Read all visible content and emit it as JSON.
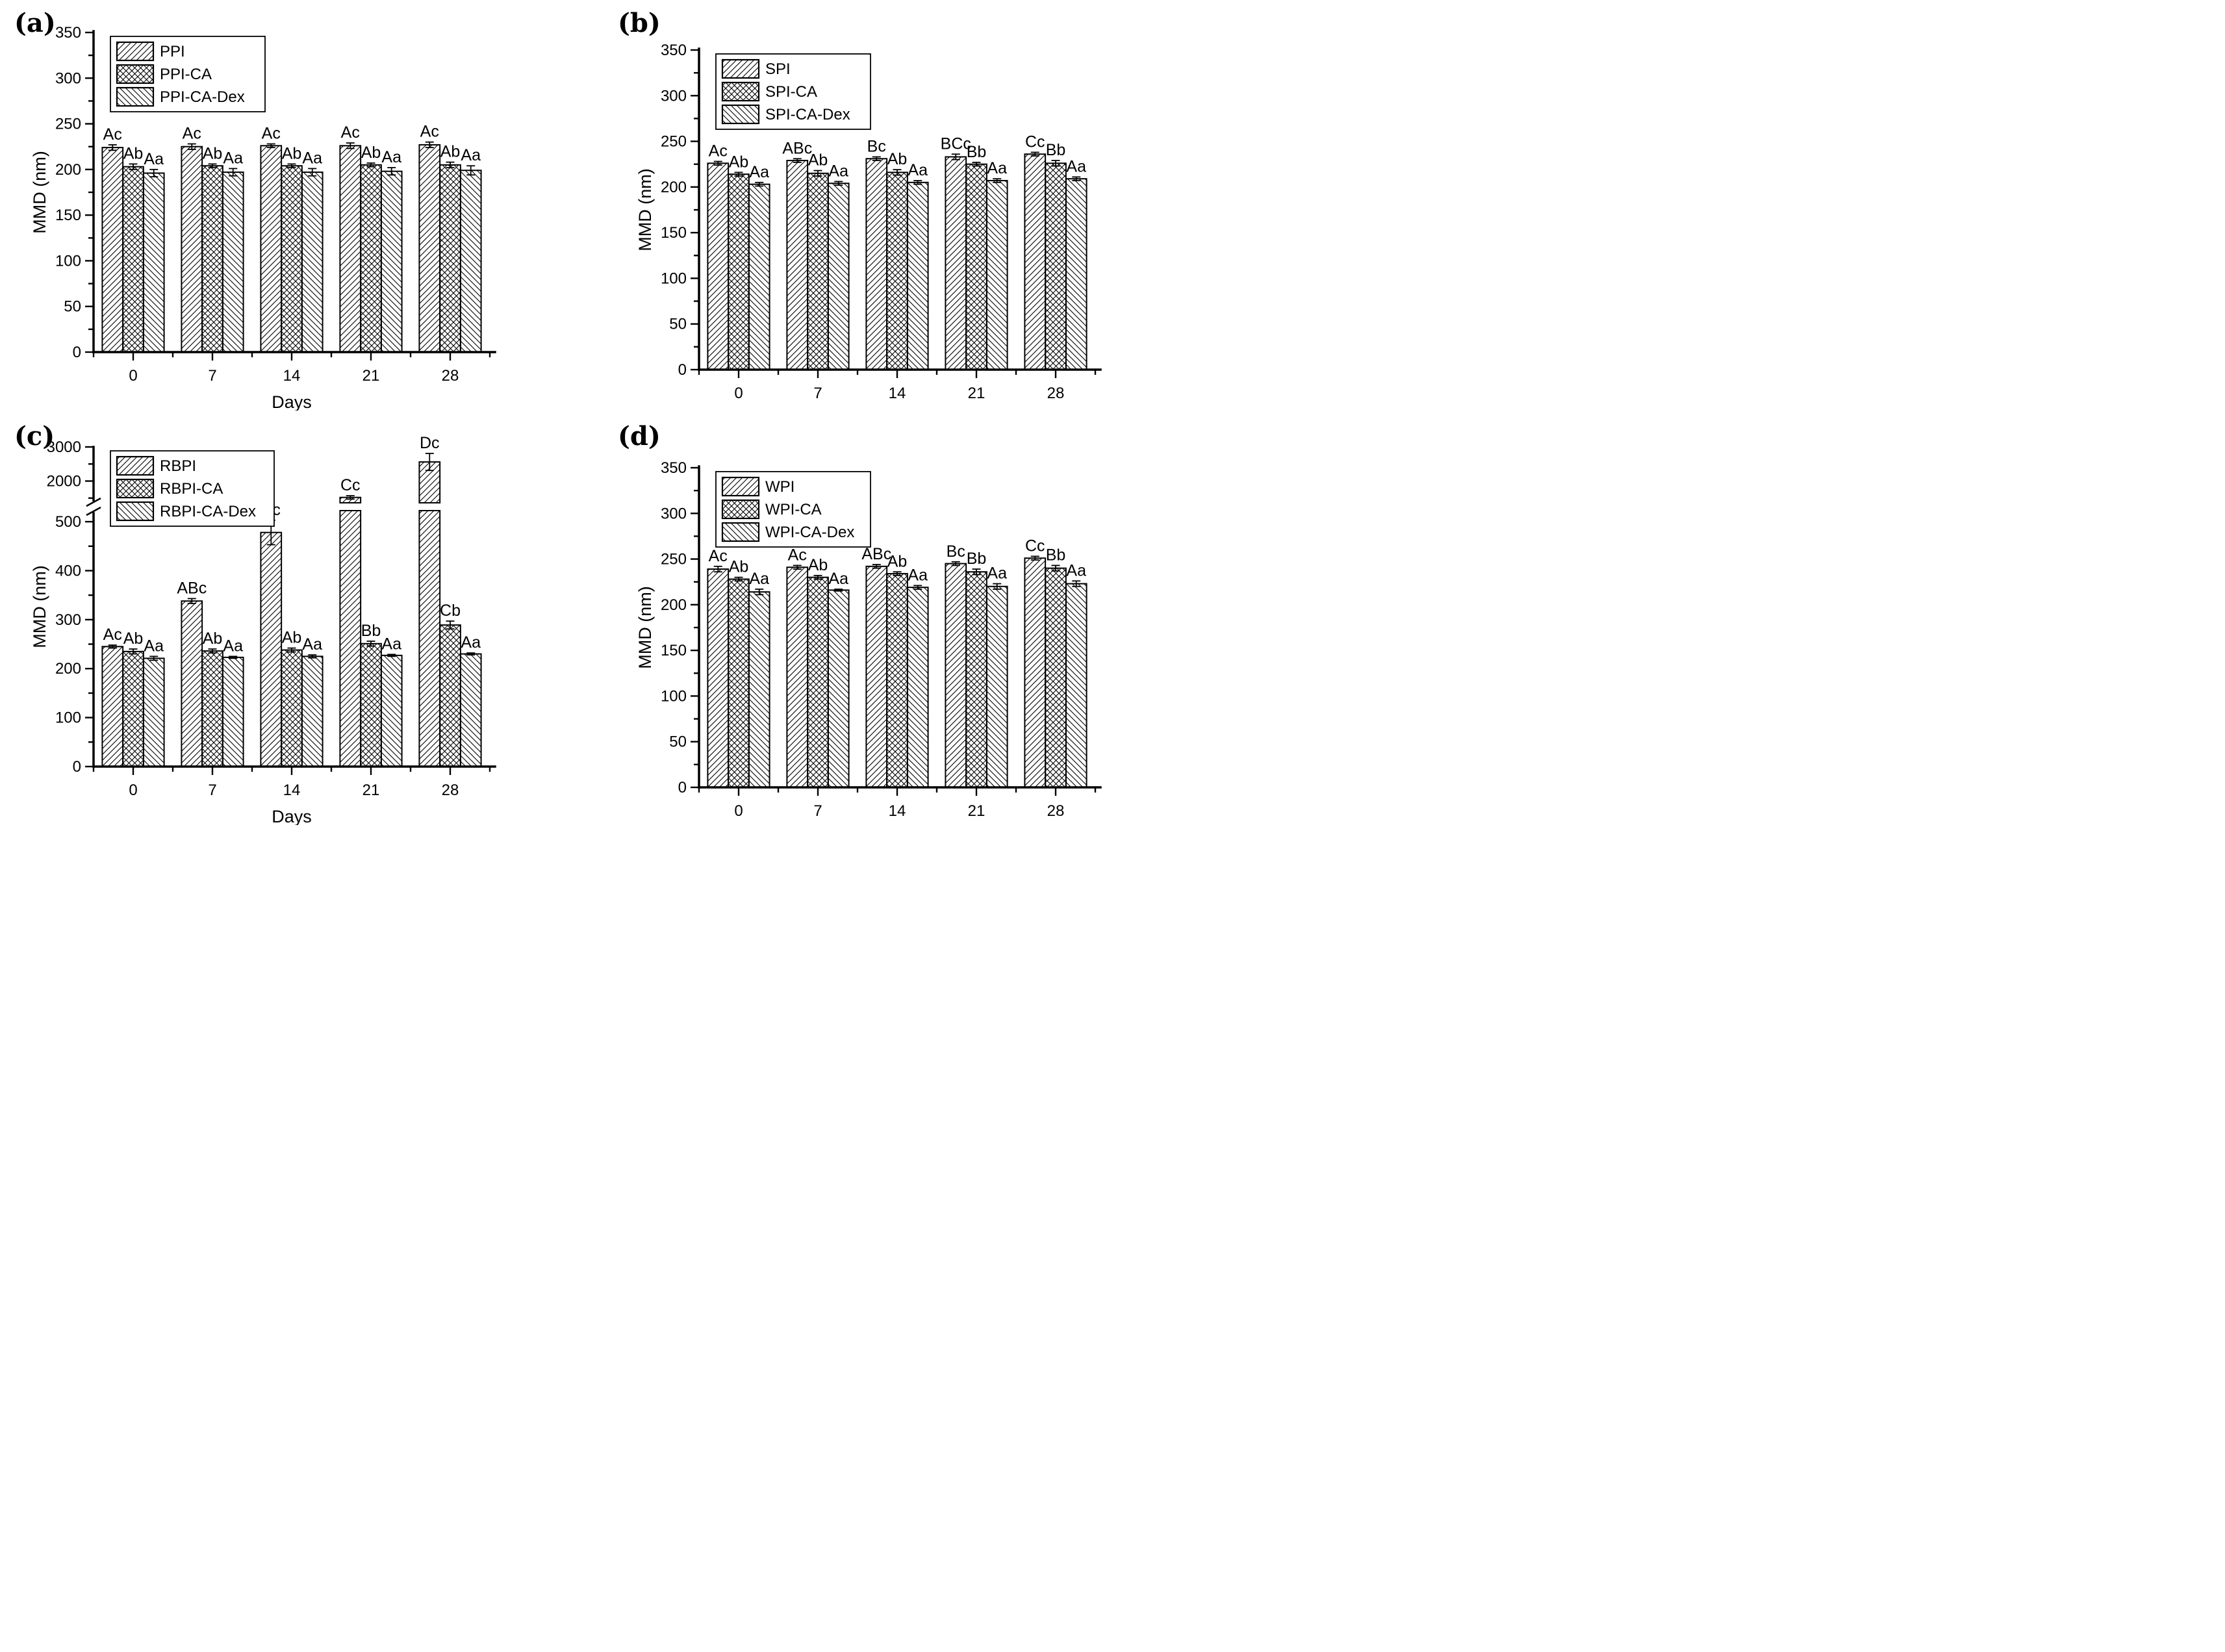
{
  "figure": {
    "background_color": "#ffffff",
    "ink_color": "#000000",
    "description_visible_text_only": true
  },
  "chart_data": [
    {
      "type": "bar",
      "panel": "(a)",
      "xlabel": "Days",
      "ylabel": "MMD (nm)",
      "categories": [
        "0",
        "7",
        "14",
        "21",
        "28"
      ],
      "ylim": [
        0,
        350
      ],
      "yticks": [
        0,
        50,
        100,
        150,
        200,
        250,
        300,
        350
      ],
      "y_minor_step": 25,
      "grid": "off",
      "legend_position": "top-left",
      "series": [
        {
          "name": "PPI",
          "hatch": "diagonal-up-icon",
          "values": [
            224,
            225,
            226,
            226,
            227
          ],
          "errors": [
            3,
            3,
            2,
            3,
            3
          ],
          "sig_labels": [
            "Ac",
            "Ac",
            "Ac",
            "Ac",
            "Ac"
          ]
        },
        {
          "name": "PPI-CA",
          "hatch": "crosshatch-icon",
          "values": [
            203,
            204,
            204,
            205,
            205
          ],
          "errors": [
            3,
            2,
            2,
            2,
            3
          ],
          "sig_labels": [
            "Ab",
            "Ab",
            "Ab",
            "Ab",
            "Ab"
          ]
        },
        {
          "name": "PPI-CA-Dex",
          "hatch": "diagonal-down-icon",
          "values": [
            196,
            197,
            197,
            198,
            199
          ],
          "errors": [
            4,
            4,
            4,
            4,
            5
          ],
          "sig_labels": [
            "Aa",
            "Aa",
            "Aa",
            "Aa",
            "Aa"
          ]
        }
      ]
    },
    {
      "type": "bar",
      "panel": "(b)",
      "xlabel": "Days",
      "ylabel": "MMD (nm)",
      "categories": [
        "0",
        "7",
        "14",
        "21",
        "28"
      ],
      "ylim": [
        0,
        350
      ],
      "yticks": [
        0,
        50,
        100,
        150,
        200,
        250,
        300,
        350
      ],
      "y_minor_step": 25,
      "grid": "off",
      "legend_position": "top-left",
      "series": [
        {
          "name": "SPI",
          "hatch": "diagonal-up-icon",
          "values": [
            226,
            229,
            231,
            233,
            236
          ],
          "errors": [
            2,
            2,
            2,
            3,
            2
          ],
          "sig_labels": [
            "Ac",
            "ABc",
            "Bc",
            "BCc",
            "Cc"
          ]
        },
        {
          "name": "SPI-CA",
          "hatch": "crosshatch-icon",
          "values": [
            214,
            215,
            216,
            225,
            226
          ],
          "errors": [
            2,
            3,
            3,
            2,
            3
          ],
          "sig_labels": [
            "Ab",
            "Ab",
            "Ab",
            "Bb",
            "Bb"
          ]
        },
        {
          "name": "SPI-CA-Dex",
          "hatch": "diagonal-down-icon",
          "values": [
            203,
            204,
            205,
            207,
            209
          ],
          "errors": [
            2,
            2,
            2,
            2,
            2
          ],
          "sig_labels": [
            "Aa",
            "Aa",
            "Aa",
            "Aa",
            "Aa"
          ]
        }
      ]
    },
    {
      "type": "bar",
      "panel": "(c)",
      "xlabel": "Days",
      "ylabel": "MMD (nm)",
      "categories": [
        "0",
        "7",
        "14",
        "21",
        "28"
      ],
      "axis_break": {
        "lower_range": [
          0,
          520
        ],
        "upper_range": [
          1400,
          3000
        ],
        "lower_ticks": [
          0,
          100,
          200,
          300,
          400,
          500
        ],
        "lower_minor_step": 50,
        "upper_ticks": [
          2000,
          3000
        ],
        "upper_minor_ticks": [
          1500,
          2500
        ]
      },
      "grid": "off",
      "legend_position": "top-left",
      "series": [
        {
          "name": "RBPI",
          "hatch": "diagonal-up-icon",
          "values": [
            245,
            338,
            478,
            1520,
            2560
          ],
          "errors": [
            3,
            5,
            25,
            50,
            250
          ],
          "sig_labels": [
            "Ac",
            "ABc",
            "Bc",
            "Cc",
            "Dc"
          ]
        },
        {
          "name": "RBPI-CA",
          "hatch": "crosshatch-icon",
          "values": [
            235,
            236,
            238,
            251,
            289
          ],
          "errors": [
            5,
            4,
            4,
            5,
            8
          ],
          "sig_labels": [
            "Ab",
            "Ab",
            "Ab",
            "Bb",
            "Cb"
          ]
        },
        {
          "name": "RBPI-CA-Dex",
          "hatch": "diagonal-down-icon",
          "values": [
            221,
            223,
            225,
            227,
            230
          ],
          "errors": [
            4,
            2,
            3,
            2,
            2
          ],
          "sig_labels": [
            "Aa",
            "Aa",
            "Aa",
            "Aa",
            "Aa"
          ]
        }
      ]
    },
    {
      "type": "bar",
      "panel": "(d)",
      "xlabel": "Days",
      "ylabel": "MMD (nm)",
      "categories": [
        "0",
        "7",
        "14",
        "21",
        "28"
      ],
      "ylim": [
        0,
        350
      ],
      "yticks": [
        0,
        50,
        100,
        150,
        200,
        250,
        300,
        350
      ],
      "y_minor_step": 25,
      "grid": "off",
      "legend_position": "top-left",
      "series": [
        {
          "name": "WPI",
          "hatch": "diagonal-up-icon",
          "values": [
            239,
            241,
            242,
            245,
            251
          ],
          "errors": [
            3,
            2,
            2,
            2,
            2
          ],
          "sig_labels": [
            "Ac",
            "Ac",
            "ABc",
            "Bc",
            "Cc"
          ]
        },
        {
          "name": "WPI-CA",
          "hatch": "crosshatch-icon",
          "values": [
            228,
            230,
            234,
            236,
            240
          ],
          "errors": [
            2,
            2,
            2,
            3,
            3
          ],
          "sig_labels": [
            "Ab",
            "Ab",
            "Ab",
            "Bb",
            "Bb"
          ]
        },
        {
          "name": "WPI-CA-Dex",
          "hatch": "diagonal-down-icon",
          "values": [
            214,
            216,
            219,
            220,
            223
          ],
          "errors": [
            3,
            1,
            2,
            3,
            3
          ],
          "sig_labels": [
            "Aa",
            "Aa",
            "Aa",
            "Aa",
            "Aa"
          ]
        }
      ]
    }
  ]
}
